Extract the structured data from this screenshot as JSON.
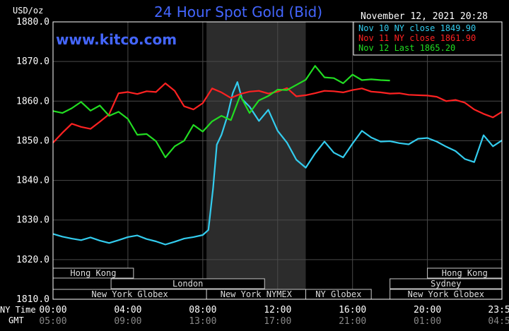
{
  "chart_data": {
    "type": "line",
    "title": "24 Hour Spot Gold (Bid)",
    "watermark": "www.kitco.com",
    "timestamp": "November 12, 2021 20:28",
    "y_unit_label": "USD/oz",
    "ylim": [
      1810,
      1880
    ],
    "y_ticks": [
      "1880.0",
      "1870.0",
      "1860.0",
      "1850.0",
      "1840.0",
      "1830.0",
      "1820.0",
      "1810.0"
    ],
    "x_row_labels": {
      "ny": "NY Time",
      "gmt": "GMT"
    },
    "x_ticks_ny": [
      "00:00",
      "04:00",
      "08:00",
      "12:00",
      "16:00",
      "20:00",
      "23:59"
    ],
    "x_ticks_gmt": [
      "05:00",
      "09:00",
      "13:00",
      "17:00",
      "21:00",
      "01:00",
      "04:59"
    ],
    "legend_position": "top-right",
    "series": [
      {
        "name": "Nov 10 NY close 1849.90",
        "color": "#33ccee",
        "x_hours": [
          0,
          0.5,
          1,
          1.5,
          2,
          2.5,
          3,
          3.5,
          4,
          4.5,
          5,
          5.5,
          6,
          6.5,
          7,
          7.5,
          8,
          8.3,
          8.55,
          8.75,
          9,
          9.3,
          9.6,
          9.85,
          10.1,
          10.5,
          11,
          11.5,
          12,
          12.5,
          13,
          13.5,
          14,
          14.5,
          15,
          15.5,
          16,
          16.5,
          17,
          17.5,
          18,
          18.5,
          19,
          19.5,
          20,
          20.5,
          21,
          21.5,
          22,
          22.5,
          23,
          23.5,
          23.98
        ],
        "values": [
          1826.5,
          1825.8,
          1825.3,
          1824.9,
          1825.6,
          1824.8,
          1824.2,
          1824.9,
          1825.7,
          1826.1,
          1825.2,
          1824.6,
          1823.8,
          1824.5,
          1825.3,
          1825.7,
          1826.2,
          1827.5,
          1838,
          1849,
          1851.5,
          1856,
          1862,
          1864.8,
          1860.5,
          1858.6,
          1855,
          1857.8,
          1852.5,
          1849.5,
          1845.2,
          1843.2,
          1846.8,
          1849.8,
          1847,
          1845.8,
          1849.3,
          1852.5,
          1850.8,
          1849.8,
          1849.9,
          1849.4,
          1849.1,
          1850.5,
          1850.7,
          1849.8,
          1848.5,
          1847.4,
          1845.4,
          1844.6,
          1851.4,
          1848.6,
          1850.1
        ]
      },
      {
        "name": "Nov 11 NY close 1861.90",
        "color": "#ff2222",
        "x_hours": [
          0,
          0.5,
          1,
          1.5,
          2,
          2.5,
          3,
          3.5,
          4,
          4.5,
          5,
          5.5,
          6,
          6.5,
          7,
          7.5,
          8,
          8.5,
          9,
          9.5,
          10,
          10.5,
          11,
          11.5,
          12,
          12.5,
          13,
          13.5,
          14,
          14.5,
          15,
          15.5,
          16,
          16.5,
          17,
          17.5,
          18,
          18.5,
          19,
          19.5,
          20,
          20.5,
          21,
          21.5,
          22,
          22.5,
          23,
          23.5,
          23.98
        ],
        "values": [
          1849.5,
          1852,
          1854.3,
          1853.5,
          1853,
          1854.8,
          1856.7,
          1862,
          1862.3,
          1861.8,
          1862.5,
          1862.3,
          1864.5,
          1862.6,
          1858.7,
          1857.9,
          1859.5,
          1863.2,
          1862.2,
          1860.8,
          1861.8,
          1862.4,
          1862.6,
          1861.9,
          1862.4,
          1863.3,
          1861.2,
          1861.5,
          1862,
          1862.6,
          1862.5,
          1862.2,
          1862.8,
          1863.2,
          1862.4,
          1862.2,
          1861.9,
          1862,
          1861.6,
          1861.5,
          1861.4,
          1861.1,
          1860,
          1860.3,
          1859.6,
          1857.9,
          1856.8,
          1855.9,
          1857.3
        ]
      },
      {
        "name": "Nov 12 Last 1865.20",
        "color": "#22dd22",
        "x_hours": [
          0,
          0.5,
          1,
          1.5,
          2,
          2.5,
          3,
          3.5,
          4,
          4.5,
          5,
          5.5,
          6,
          6.5,
          7,
          7.5,
          8,
          8.5,
          9,
          9.5,
          10,
          10.5,
          11,
          11.5,
          12,
          12.5,
          13,
          13.5,
          14,
          14.5,
          15,
          15.5,
          16,
          16.5,
          17,
          17.5,
          18
        ],
        "values": [
          1857.5,
          1857,
          1858.2,
          1859.8,
          1857.6,
          1858.9,
          1856.3,
          1857.3,
          1855.5,
          1851.5,
          1851.7,
          1849.9,
          1845.8,
          1848.6,
          1850,
          1854,
          1852.3,
          1854.9,
          1856.3,
          1855.2,
          1861.4,
          1857,
          1860.2,
          1861.3,
          1862.9,
          1862.8,
          1864.1,
          1865.4,
          1868.9,
          1866,
          1865.8,
          1864.5,
          1866.7,
          1865.3,
          1865.5,
          1865.3,
          1865.2
        ]
      }
    ],
    "shaded_band_hours": [
      8.2,
      13.5
    ],
    "session_rows": [
      [
        {
          "label": "Hong Kong",
          "from": 0,
          "to": 4.3
        },
        {
          "label": "Hong Kong",
          "from": 20,
          "to": 23.98
        }
      ],
      [
        {
          "label": "London",
          "from": 3.1,
          "to": 11.3
        },
        {
          "label": "Sydney",
          "from": 18,
          "to": 23.98
        }
      ],
      [
        {
          "label": "New York Globex",
          "from": 0,
          "to": 8.2
        },
        {
          "label": "New York NYMEX",
          "from": 8.2,
          "to": 13.5
        },
        {
          "label": "NY Globex",
          "from": 13.5,
          "to": 17
        },
        {
          "label": "New York Globex",
          "from": 18,
          "to": 23.98
        }
      ]
    ],
    "colors": {
      "axis": "#ffffff",
      "grid": "#4a4a4a",
      "title": "#4466ff",
      "shade": "#2c2c2c"
    }
  }
}
